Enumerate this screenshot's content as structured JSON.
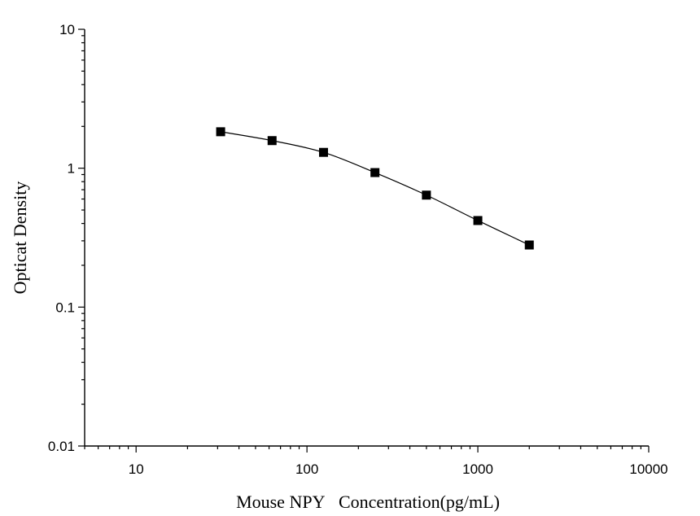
{
  "chart_data": {
    "type": "scatter",
    "xlabel": "Mouse NPY   Concentration(pg/mL)",
    "ylabel": "Opticat Density",
    "x_scale": "log",
    "y_scale": "log",
    "xlim": [
      5,
      10000
    ],
    "ylim": [
      0.01,
      10
    ],
    "x_ticks": [
      {
        "value": 10,
        "label": "10"
      },
      {
        "value": 100,
        "label": "100"
      },
      {
        "value": 1000,
        "label": "1000"
      },
      {
        "value": 10000,
        "label": "10000"
      }
    ],
    "y_ticks": [
      {
        "value": 0.01,
        "label": "0.01"
      },
      {
        "value": 0.1,
        "label": "0.1"
      },
      {
        "value": 1,
        "label": "1"
      },
      {
        "value": 10,
        "label": "10"
      }
    ],
    "grid": false,
    "legend": "none",
    "marker": "square",
    "fit_curve": true,
    "color": "#000000",
    "x": [
      31.25,
      62.5,
      125,
      250,
      500,
      1000,
      2000
    ],
    "y": [
      1.83,
      1.58,
      1.3,
      0.93,
      0.64,
      0.42,
      0.28
    ]
  }
}
